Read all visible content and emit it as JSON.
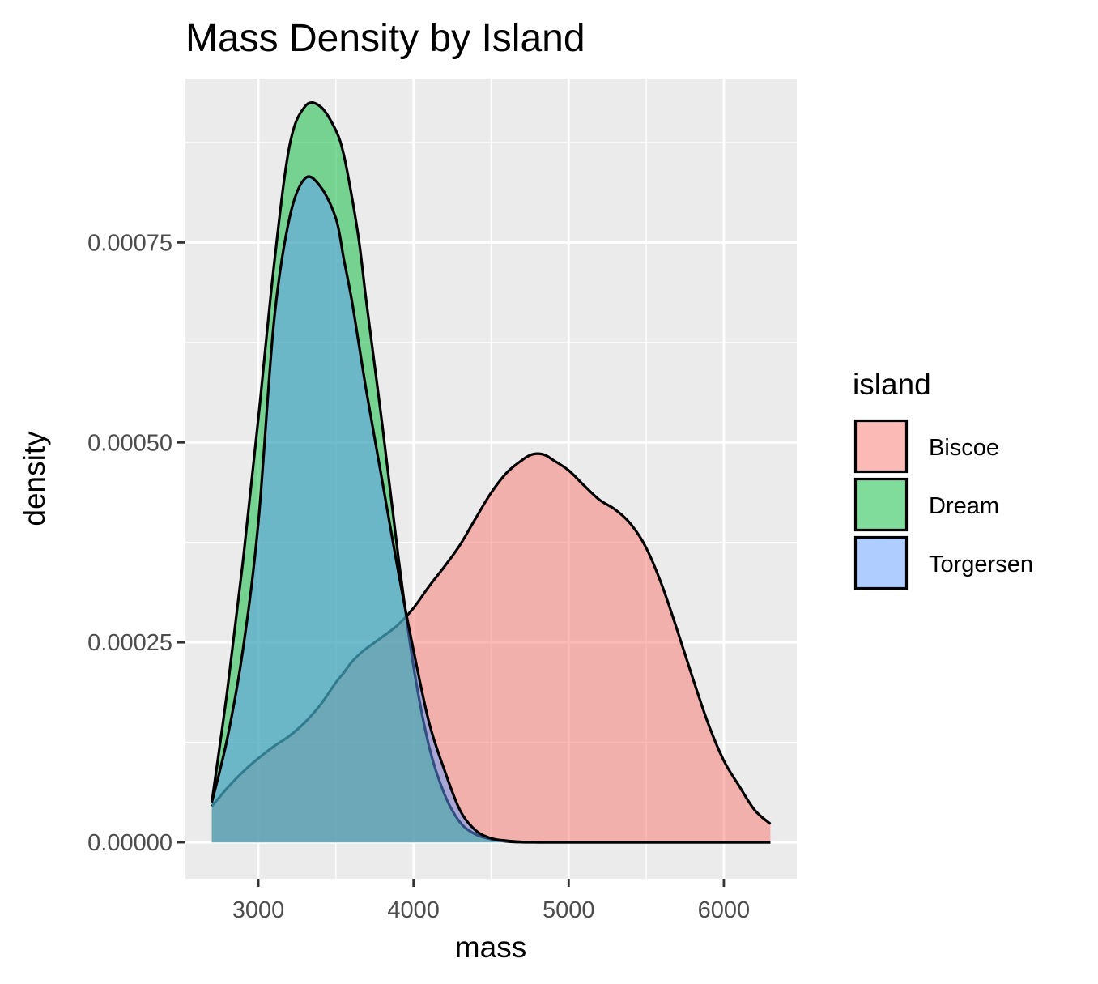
{
  "chart_data": {
    "type": "area",
    "subtype": "density",
    "title": "Mass Density by Island",
    "xlabel": "mass",
    "ylabel": "density",
    "xlim": [
      2530,
      6470
    ],
    "ylim": [
      -4.55e-05,
      0.000955
    ],
    "x_ticks": [
      3000,
      4000,
      5000,
      6000
    ],
    "x_tick_labels": [
      "3000",
      "4000",
      "5000",
      "6000"
    ],
    "y_ticks": [
      0,
      0.00025,
      0.0005,
      0.00075
    ],
    "y_tick_labels": [
      "0.00000",
      "0.00025",
      "0.00050",
      "0.00075"
    ],
    "grid": true,
    "legend": {
      "title": "island",
      "position": "right"
    },
    "x": [
      2700,
      2800,
      2900,
      3000,
      3100,
      3200,
      3300,
      3400,
      3500,
      3550,
      3600,
      3650,
      3700,
      3800,
      3900,
      4000,
      4100,
      4200,
      4300,
      4400,
      4500,
      4600,
      4700,
      4750,
      4800,
      4850,
      4900,
      5000,
      5100,
      5200,
      5300,
      5400,
      5500,
      5600,
      5700,
      5800,
      5900,
      6000,
      6100,
      6200,
      6300
    ],
    "series": [
      {
        "name": "Biscoe",
        "color": "#F8766D",
        "values": [
          4.5e-05,
          6.8e-05,
          8.8e-05,
          0.000105,
          0.00012,
          0.000133,
          0.00015,
          0.000172,
          0.0002,
          0.000212,
          0.000225,
          0.000235,
          0.000243,
          0.000257,
          0.000272,
          0.000293,
          0.00032,
          0.000345,
          0.000372,
          0.000405,
          0.000437,
          0.000462,
          0.000478,
          0.000484,
          0.000486,
          0.000484,
          0.000478,
          0.000465,
          0.000446,
          0.000428,
          0.000416,
          0.000398,
          0.000368,
          0.000322,
          0.000265,
          0.000205,
          0.000148,
          0.000102,
          7e-05,
          4e-05,
          2.3e-05
        ]
      },
      {
        "name": "Dream",
        "color": "#00BA38",
        "values": [
          5e-05,
          0.00019,
          0.00035,
          0.00053,
          0.00072,
          0.00087,
          0.00092,
          0.00092,
          0.00089,
          0.00086,
          0.00081,
          0.00075,
          0.00067,
          0.00052,
          0.00036,
          0.00022,
          0.00012,
          6e-05,
          2.5e-05,
          1e-05,
          4e-06,
          1e-06,
          2e-07,
          1e-07,
          0,
          0,
          0,
          0,
          0,
          0,
          0,
          0,
          0,
          0,
          0,
          0,
          0,
          0,
          0,
          0,
          0
        ]
      },
      {
        "name": "Torgersen",
        "color": "#619CFF",
        "values": [
          5e-05,
          0.00013,
          0.00024,
          0.0004,
          0.00065,
          0.00078,
          0.00083,
          0.00082,
          0.00078,
          0.00073,
          0.00068,
          0.00062,
          0.00056,
          0.00045,
          0.00034,
          0.00024,
          0.00015,
          9e-05,
          4e-05,
          1.5e-05,
          5e-06,
          2e-06,
          5e-07,
          2e-07,
          1e-07,
          0,
          0,
          0,
          0,
          0,
          0,
          0,
          0,
          0,
          0,
          0,
          0,
          0,
          0,
          0,
          0
        ]
      }
    ]
  }
}
